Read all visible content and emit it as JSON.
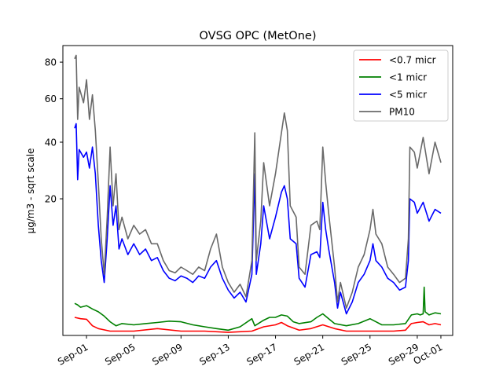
{
  "chart_data": {
    "type": "line",
    "title": "OVSG OPC (MetOne)",
    "xlabel": "",
    "ylabel": "µg/m3 - sqrt scale",
    "y_scale": "sqrt",
    "ylim": [
      0,
      90
    ],
    "xlim": [
      "2023-08-30",
      "2023-10-02"
    ],
    "y_ticks": [
      20,
      40,
      60,
      80
    ],
    "x_ticks": [
      {
        "date": "2023-09-01",
        "label": "Sep-01"
      },
      {
        "date": "2023-09-05",
        "label": "Sep-05"
      },
      {
        "date": "2023-09-09",
        "label": "Sep-09"
      },
      {
        "date": "2023-09-13",
        "label": "Sep-13"
      },
      {
        "date": "2023-09-17",
        "label": "Sep-17"
      },
      {
        "date": "2023-09-21",
        "label": "Sep-21"
      },
      {
        "date": "2023-09-25",
        "label": "Sep-25"
      },
      {
        "date": "2023-09-29",
        "label": "Sep-29"
      },
      {
        "date": "2023-10-01",
        "label": "Oct-01"
      }
    ],
    "grid": false,
    "legend_position": "top-right",
    "series": [
      {
        "name": "<0.7 micr",
        "color": "#ff0000",
        "points": [
          [
            "2023-08-31 00:00",
            0.35
          ],
          [
            "2023-08-31 12:00",
            0.3
          ],
          [
            "2023-09-01 00:00",
            0.28
          ],
          [
            "2023-09-01 12:00",
            0.1
          ],
          [
            "2023-09-02 00:00",
            0.05
          ],
          [
            "2023-09-03 00:00",
            0.02
          ],
          [
            "2023-09-05 00:00",
            0.02
          ],
          [
            "2023-09-07 00:00",
            0.05
          ],
          [
            "2023-09-09 00:00",
            0.02
          ],
          [
            "2023-09-11 00:00",
            0.02
          ],
          [
            "2023-09-13 00:00",
            0.01
          ],
          [
            "2023-09-15 00:00",
            0.02
          ],
          [
            "2023-09-16 00:00",
            0.08
          ],
          [
            "2023-09-17 00:00",
            0.12
          ],
          [
            "2023-09-17 12:00",
            0.18
          ],
          [
            "2023-09-18 00:00",
            0.1
          ],
          [
            "2023-09-19 00:00",
            0.03
          ],
          [
            "2023-09-20 00:00",
            0.05
          ],
          [
            "2023-09-21 00:00",
            0.12
          ],
          [
            "2023-09-22 00:00",
            0.05
          ],
          [
            "2023-09-23 00:00",
            0.02
          ],
          [
            "2023-09-25 00:00",
            0.02
          ],
          [
            "2023-09-27 00:00",
            0.02
          ],
          [
            "2023-09-28 00:00",
            0.03
          ],
          [
            "2023-09-28 12:00",
            0.15
          ],
          [
            "2023-09-29 00:00",
            0.18
          ],
          [
            "2023-09-29 12:00",
            0.2
          ],
          [
            "2023-09-30 00:00",
            0.12
          ],
          [
            "2023-09-30 12:00",
            0.15
          ],
          [
            "2023-10-01 00:00",
            0.12
          ]
        ]
      },
      {
        "name": "<1 micr",
        "color": "#008000",
        "points": [
          [
            "2023-08-31 00:00",
            1.1
          ],
          [
            "2023-08-31 06:00",
            1.0
          ],
          [
            "2023-08-31 12:00",
            0.85
          ],
          [
            "2023-09-01 00:00",
            0.95
          ],
          [
            "2023-09-01 12:00",
            0.75
          ],
          [
            "2023-09-02 00:00",
            0.6
          ],
          [
            "2023-09-02 12:00",
            0.4
          ],
          [
            "2023-09-03 00:00",
            0.2
          ],
          [
            "2023-09-03 12:00",
            0.1
          ],
          [
            "2023-09-04 00:00",
            0.15
          ],
          [
            "2023-09-05 00:00",
            0.12
          ],
          [
            "2023-09-06 00:00",
            0.15
          ],
          [
            "2023-09-07 00:00",
            0.18
          ],
          [
            "2023-09-08 00:00",
            0.22
          ],
          [
            "2023-09-09 00:00",
            0.2
          ],
          [
            "2023-09-10 00:00",
            0.12
          ],
          [
            "2023-09-11 00:00",
            0.08
          ],
          [
            "2023-09-12 00:00",
            0.05
          ],
          [
            "2023-09-13 00:00",
            0.03
          ],
          [
            "2023-09-14 00:00",
            0.08
          ],
          [
            "2023-09-15 00:00",
            0.3
          ],
          [
            "2023-09-15 06:00",
            0.1
          ],
          [
            "2023-09-16 00:00",
            0.25
          ],
          [
            "2023-09-16 12:00",
            0.35
          ],
          [
            "2023-09-17 00:00",
            0.35
          ],
          [
            "2023-09-17 12:00",
            0.45
          ],
          [
            "2023-09-18 00:00",
            0.4
          ],
          [
            "2023-09-18 12:00",
            0.2
          ],
          [
            "2023-09-19 00:00",
            0.15
          ],
          [
            "2023-09-20 00:00",
            0.2
          ],
          [
            "2023-09-20 12:00",
            0.35
          ],
          [
            "2023-09-21 00:00",
            0.5
          ],
          [
            "2023-09-21 12:00",
            0.3
          ],
          [
            "2023-09-22 00:00",
            0.15
          ],
          [
            "2023-09-23 00:00",
            0.1
          ],
          [
            "2023-09-24 00:00",
            0.15
          ],
          [
            "2023-09-25 00:00",
            0.3
          ],
          [
            "2023-09-25 12:00",
            0.2
          ],
          [
            "2023-09-26 00:00",
            0.12
          ],
          [
            "2023-09-27 00:00",
            0.12
          ],
          [
            "2023-09-28 00:00",
            0.15
          ],
          [
            "2023-09-28 12:00",
            0.45
          ],
          [
            "2023-09-29 00:00",
            0.5
          ],
          [
            "2023-09-29 06:00",
            0.45
          ],
          [
            "2023-09-29 12:00",
            0.5
          ],
          [
            "2023-09-29 14:00",
            2.5
          ],
          [
            "2023-09-29 16:00",
            0.6
          ],
          [
            "2023-09-30 00:00",
            0.45
          ],
          [
            "2023-09-30 12:00",
            0.55
          ],
          [
            "2023-10-01 00:00",
            0.5
          ]
        ]
      },
      {
        "name": "<5 micr",
        "color": "#0000ff",
        "points": [
          [
            "2023-08-31 00:00",
            46
          ],
          [
            "2023-08-31 03:00",
            48
          ],
          [
            "2023-08-31 06:00",
            26
          ],
          [
            "2023-08-31 09:00",
            37
          ],
          [
            "2023-08-31 18:00",
            34
          ],
          [
            "2023-09-01 00:00",
            36
          ],
          [
            "2023-09-01 06:00",
            30
          ],
          [
            "2023-09-01 12:00",
            38
          ],
          [
            "2023-09-01 18:00",
            28
          ],
          [
            "2023-09-02 00:00",
            13
          ],
          [
            "2023-09-02 06:00",
            6
          ],
          [
            "2023-09-02 12:00",
            3
          ],
          [
            "2023-09-02 18:00",
            10
          ],
          [
            "2023-09-03 00:00",
            24
          ],
          [
            "2023-09-03 06:00",
            13
          ],
          [
            "2023-09-03 12:00",
            18
          ],
          [
            "2023-09-03 18:00",
            8
          ],
          [
            "2023-09-04 00:00",
            10
          ],
          [
            "2023-09-04 12:00",
            7
          ],
          [
            "2023-09-05 00:00",
            9
          ],
          [
            "2023-09-05 12:00",
            7
          ],
          [
            "2023-09-06 00:00",
            8
          ],
          [
            "2023-09-06 12:00",
            6
          ],
          [
            "2023-09-07 00:00",
            6.5
          ],
          [
            "2023-09-07 12:00",
            4.5
          ],
          [
            "2023-09-08 00:00",
            3.5
          ],
          [
            "2023-09-08 12:00",
            3.2
          ],
          [
            "2023-09-09 00:00",
            3.8
          ],
          [
            "2023-09-09 12:00",
            3.5
          ],
          [
            "2023-09-10 00:00",
            3.0
          ],
          [
            "2023-09-10 12:00",
            3.8
          ],
          [
            "2023-09-11 00:00",
            3.5
          ],
          [
            "2023-09-11 12:00",
            5
          ],
          [
            "2023-09-12 00:00",
            6
          ],
          [
            "2023-09-12 12:00",
            3.5
          ],
          [
            "2023-09-13 00:00",
            2.2
          ],
          [
            "2023-09-13 12:00",
            1.5
          ],
          [
            "2023-09-14 00:00",
            2.0
          ],
          [
            "2023-09-14 12:00",
            1.2
          ],
          [
            "2023-09-15 00:00",
            4
          ],
          [
            "2023-09-15 06:00",
            28
          ],
          [
            "2023-09-15 09:00",
            4
          ],
          [
            "2023-09-15 18:00",
            9
          ],
          [
            "2023-09-16 00:00",
            18
          ],
          [
            "2023-09-16 12:00",
            10
          ],
          [
            "2023-09-17 00:00",
            15
          ],
          [
            "2023-09-17 12:00",
            22
          ],
          [
            "2023-09-17 18:00",
            24
          ],
          [
            "2023-09-18 00:00",
            20
          ],
          [
            "2023-09-18 06:00",
            10
          ],
          [
            "2023-09-18 18:00",
            9
          ],
          [
            "2023-09-19 00:00",
            3.5
          ],
          [
            "2023-09-19 12:00",
            2.5
          ],
          [
            "2023-09-20 00:00",
            7
          ],
          [
            "2023-09-20 12:00",
            7.5
          ],
          [
            "2023-09-20 18:00",
            6.5
          ],
          [
            "2023-09-21 00:00",
            19
          ],
          [
            "2023-09-21 06:00",
            12
          ],
          [
            "2023-09-21 12:00",
            8
          ],
          [
            "2023-09-22 00:00",
            3
          ],
          [
            "2023-09-22 06:00",
            0.8
          ],
          [
            "2023-09-22 12:00",
            2
          ],
          [
            "2023-09-23 00:00",
            0.5
          ],
          [
            "2023-09-23 12:00",
            1.2
          ],
          [
            "2023-09-24 00:00",
            3
          ],
          [
            "2023-09-24 12:00",
            4
          ],
          [
            "2023-09-25 00:00",
            6
          ],
          [
            "2023-09-25 06:00",
            9
          ],
          [
            "2023-09-25 12:00",
            6
          ],
          [
            "2023-09-26 00:00",
            5
          ],
          [
            "2023-09-26 12:00",
            3.5
          ],
          [
            "2023-09-27 00:00",
            3
          ],
          [
            "2023-09-27 12:00",
            2.2
          ],
          [
            "2023-09-28 00:00",
            2.5
          ],
          [
            "2023-09-28 06:00",
            6
          ],
          [
            "2023-09-28 09:00",
            20
          ],
          [
            "2023-09-28 18:00",
            19
          ],
          [
            "2023-09-29 00:00",
            16
          ],
          [
            "2023-09-29 12:00",
            19
          ],
          [
            "2023-09-30 00:00",
            14
          ],
          [
            "2023-09-30 12:00",
            17
          ],
          [
            "2023-10-01 00:00",
            16
          ]
        ]
      },
      {
        "name": "PM10",
        "color": "#696969",
        "points": [
          [
            "2023-08-31 00:00",
            82
          ],
          [
            "2023-08-31 03:00",
            84
          ],
          [
            "2023-08-31 06:00",
            50
          ],
          [
            "2023-08-31 09:00",
            66
          ],
          [
            "2023-08-31 18:00",
            58
          ],
          [
            "2023-09-01 00:00",
            70
          ],
          [
            "2023-09-01 06:00",
            50
          ],
          [
            "2023-09-01 12:00",
            62
          ],
          [
            "2023-09-01 18:00",
            45
          ],
          [
            "2023-09-02 00:00",
            25
          ],
          [
            "2023-09-02 06:00",
            10
          ],
          [
            "2023-09-02 12:00",
            4
          ],
          [
            "2023-09-02 18:00",
            15
          ],
          [
            "2023-09-03 00:00",
            38
          ],
          [
            "2023-09-03 06:00",
            18
          ],
          [
            "2023-09-03 12:00",
            28
          ],
          [
            "2023-09-03 18:00",
            12
          ],
          [
            "2023-09-04 00:00",
            15
          ],
          [
            "2023-09-04 12:00",
            10
          ],
          [
            "2023-09-05 00:00",
            13
          ],
          [
            "2023-09-05 12:00",
            11
          ],
          [
            "2023-09-06 00:00",
            12
          ],
          [
            "2023-09-06 12:00",
            9
          ],
          [
            "2023-09-07 00:00",
            9
          ],
          [
            "2023-09-07 12:00",
            6
          ],
          [
            "2023-09-08 00:00",
            4.5
          ],
          [
            "2023-09-08 12:00",
            4.2
          ],
          [
            "2023-09-09 00:00",
            5
          ],
          [
            "2023-09-09 12:00",
            4.5
          ],
          [
            "2023-09-10 00:00",
            4.0
          ],
          [
            "2023-09-10 12:00",
            5
          ],
          [
            "2023-09-11 00:00",
            4.5
          ],
          [
            "2023-09-11 12:00",
            8
          ],
          [
            "2023-09-12 00:00",
            11
          ],
          [
            "2023-09-12 12:00",
            5
          ],
          [
            "2023-09-13 00:00",
            3
          ],
          [
            "2023-09-13 12:00",
            2
          ],
          [
            "2023-09-14 00:00",
            2.8
          ],
          [
            "2023-09-14 12:00",
            1.6
          ],
          [
            "2023-09-15 00:00",
            6
          ],
          [
            "2023-09-15 06:00",
            44
          ],
          [
            "2023-09-15 09:00",
            6
          ],
          [
            "2023-09-15 18:00",
            14
          ],
          [
            "2023-09-16 00:00",
            32
          ],
          [
            "2023-09-16 12:00",
            18
          ],
          [
            "2023-09-17 00:00",
            28
          ],
          [
            "2023-09-17 12:00",
            44
          ],
          [
            "2023-09-17 18:00",
            53
          ],
          [
            "2023-09-18 00:00",
            45
          ],
          [
            "2023-09-18 06:00",
            18
          ],
          [
            "2023-09-18 18:00",
            15
          ],
          [
            "2023-09-19 00:00",
            5
          ],
          [
            "2023-09-19 12:00",
            4
          ],
          [
            "2023-09-20 00:00",
            13
          ],
          [
            "2023-09-20 12:00",
            14
          ],
          [
            "2023-09-20 18:00",
            12
          ],
          [
            "2023-09-21 00:00",
            38
          ],
          [
            "2023-09-21 06:00",
            25
          ],
          [
            "2023-09-21 12:00",
            16
          ],
          [
            "2023-09-22 00:00",
            5
          ],
          [
            "2023-09-22 06:00",
            1.2
          ],
          [
            "2023-09-22 12:00",
            3
          ],
          [
            "2023-09-23 00:00",
            0.8
          ],
          [
            "2023-09-23 12:00",
            2
          ],
          [
            "2023-09-24 00:00",
            5
          ],
          [
            "2023-09-24 12:00",
            7
          ],
          [
            "2023-09-25 00:00",
            12
          ],
          [
            "2023-09-25 06:00",
            17
          ],
          [
            "2023-09-25 12:00",
            11
          ],
          [
            "2023-09-26 00:00",
            9
          ],
          [
            "2023-09-26 12:00",
            5
          ],
          [
            "2023-09-27 00:00",
            4
          ],
          [
            "2023-09-27 12:00",
            3
          ],
          [
            "2023-09-28 00:00",
            3.5
          ],
          [
            "2023-09-28 06:00",
            10
          ],
          [
            "2023-09-28 09:00",
            38
          ],
          [
            "2023-09-28 18:00",
            36
          ],
          [
            "2023-09-29 00:00",
            30
          ],
          [
            "2023-09-29 12:00",
            42
          ],
          [
            "2023-09-30 00:00",
            28
          ],
          [
            "2023-09-30 12:00",
            40
          ],
          [
            "2023-10-01 00:00",
            32
          ]
        ]
      }
    ]
  }
}
